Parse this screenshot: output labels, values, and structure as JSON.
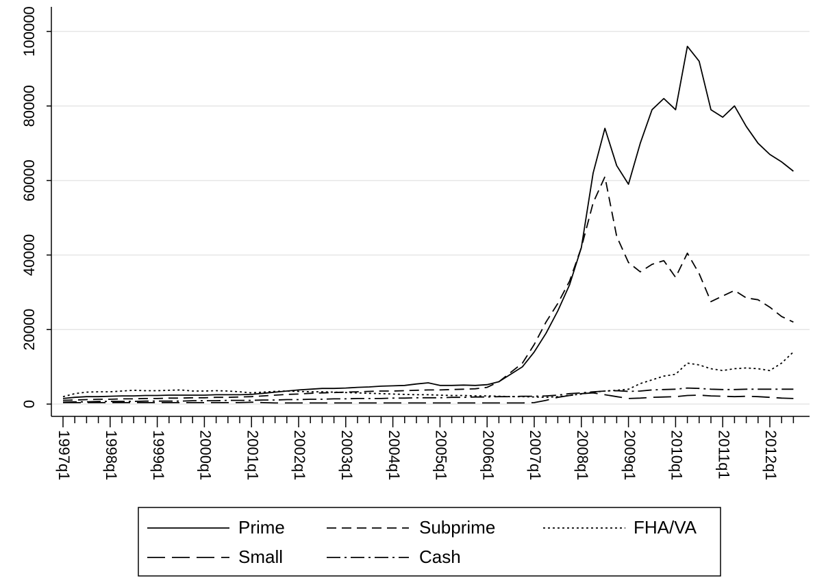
{
  "chart_data": {
    "type": "line",
    "categories": [
      "1997q1",
      null,
      null,
      null,
      "1998q1",
      null,
      null,
      null,
      "1999q1",
      null,
      null,
      null,
      "2000q1",
      null,
      null,
      null,
      "2001q1",
      null,
      null,
      null,
      "2002q1",
      null,
      null,
      null,
      "2003q1",
      null,
      null,
      null,
      "2004q1",
      null,
      null,
      null,
      "2005q1",
      null,
      null,
      null,
      "2006q1",
      null,
      null,
      null,
      "2007q1",
      null,
      null,
      null,
      "2008q1",
      null,
      null,
      null,
      "2009q1",
      null,
      null,
      null,
      "2010q1",
      null,
      null,
      null,
      "2011q1",
      null,
      null,
      null,
      "2012q1",
      null,
      null
    ],
    "series": [
      {
        "name": "Prime",
        "color": "#000000",
        "dash": "none",
        "values": [
          1500,
          1800,
          2000,
          2000,
          2100,
          2200,
          2200,
          2300,
          2300,
          2400,
          2400,
          2400,
          2400,
          2500,
          2500,
          2500,
          2600,
          2900,
          3200,
          3500,
          3800,
          4000,
          4200,
          4200,
          4300,
          4500,
          4600,
          4800,
          4900,
          5000,
          5400,
          5700,
          5000,
          5000,
          5100,
          5000,
          5200,
          6000,
          8000,
          10000,
          14000,
          19000,
          25000,
          32000,
          42000,
          62000,
          74000,
          64000,
          59000,
          70000,
          79000,
          82000,
          79000,
          96000,
          92000,
          79000,
          77000,
          80000,
          74500,
          70000,
          67000,
          65000,
          62500
        ]
      },
      {
        "name": "Subprime",
        "color": "#000000",
        "dash": "14,8",
        "values": [
          1000,
          1100,
          1200,
          1300,
          1300,
          1400,
          1400,
          1500,
          1500,
          1600,
          1600,
          1700,
          1700,
          1800,
          1800,
          1900,
          2000,
          2200,
          2400,
          2600,
          2700,
          2900,
          3000,
          3100,
          3200,
          3300,
          3400,
          3500,
          3500,
          3600,
          3700,
          3800,
          3800,
          3900,
          4000,
          4100,
          4500,
          6000,
          8500,
          11000,
          16000,
          22000,
          27000,
          33000,
          42000,
          54000,
          61000,
          45000,
          38000,
          35500,
          37500,
          38500,
          34000,
          40500,
          35000,
          27500,
          29000,
          30500,
          28500,
          28000,
          26000,
          23500,
          22000
        ]
      },
      {
        "name": "FHA/VA",
        "color": "#000000",
        "dash": "3,4",
        "values": [
          2000,
          2800,
          3200,
          3300,
          3300,
          3500,
          3700,
          3600,
          3600,
          3700,
          3800,
          3500,
          3500,
          3600,
          3500,
          3300,
          3000,
          3200,
          3400,
          3500,
          3400,
          3300,
          3300,
          3200,
          3100,
          3000,
          2900,
          2800,
          2700,
          2600,
          2500,
          2500,
          2400,
          2300,
          2300,
          2200,
          2200,
          2100,
          2000,
          2000,
          1900,
          1800,
          2000,
          2300,
          2700,
          3200,
          3500,
          3700,
          4000,
          5500,
          6500,
          7500,
          8000,
          11000,
          10500,
          9500,
          9000,
          9500,
          9700,
          9500,
          9000,
          11000,
          14000
        ]
      },
      {
        "name": "Small",
        "color": "#000000",
        "dash": "26,10",
        "values": [
          400,
          400,
          400,
          400,
          400,
          400,
          400,
          400,
          400,
          400,
          400,
          400,
          400,
          400,
          400,
          400,
          500,
          400,
          300,
          300,
          300,
          300,
          300,
          300,
          300,
          300,
          300,
          300,
          300,
          300,
          300,
          300,
          300,
          300,
          300,
          300,
          300,
          300,
          300,
          300,
          400,
          1000,
          1800,
          2300,
          2800,
          3000,
          2500,
          2000,
          1500,
          1600,
          1800,
          1900,
          2000,
          2300,
          2400,
          2200,
          2100,
          2000,
          2100,
          2000,
          1800,
          1600,
          1500
        ]
      },
      {
        "name": "Cash",
        "color": "#000000",
        "dash": "20,6,3,6",
        "values": [
          500,
          600,
          600,
          700,
          700,
          700,
          700,
          800,
          800,
          800,
          800,
          900,
          900,
          900,
          1000,
          1000,
          1000,
          1100,
          1100,
          1200,
          1200,
          1300,
          1300,
          1400,
          1400,
          1500,
          1500,
          1500,
          1600,
          1600,
          1700,
          1700,
          1700,
          1800,
          1800,
          1900,
          1900,
          2000,
          2000,
          2100,
          2100,
          2200,
          2400,
          2800,
          3000,
          3300,
          3500,
          3600,
          3400,
          3500,
          3800,
          3900,
          4000,
          4300,
          4200,
          4000,
          3900,
          3900,
          4000,
          4000,
          4000,
          4000,
          4000
        ]
      }
    ],
    "ylim": [
      -3300,
      106600
    ],
    "yticks": [
      0,
      20000,
      40000,
      60000,
      80000,
      100000
    ],
    "grid": true,
    "legend": "bottom"
  }
}
